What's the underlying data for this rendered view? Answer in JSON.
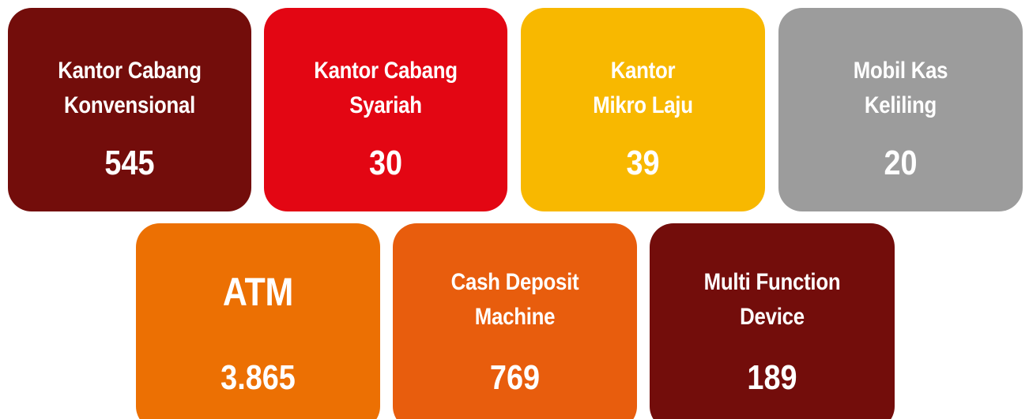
{
  "cards": [
    {
      "label": [
        "Kantor Cabang",
        "Konvensional"
      ],
      "value": "545",
      "color": "#730d0b"
    },
    {
      "label": [
        "Kantor Cabang",
        "Syariah"
      ],
      "value": "30",
      "color": "#e30613"
    },
    {
      "label": [
        "Kantor",
        "Mikro Laju"
      ],
      "value": "39",
      "color": "#f8b800"
    },
    {
      "label": [
        "Mobil Kas",
        "Keliling"
      ],
      "value": "20",
      "color": "#9c9c9c"
    },
    {
      "label": [
        "ATM"
      ],
      "value": "3.865",
      "color": "#ec7003"
    },
    {
      "label": [
        "Cash Deposit",
        "Machine"
      ],
      "value": "769",
      "color": "#e85d0d"
    },
    {
      "label": [
        "Multi Function",
        "Device"
      ],
      "value": "189",
      "color": "#730d0b"
    }
  ]
}
